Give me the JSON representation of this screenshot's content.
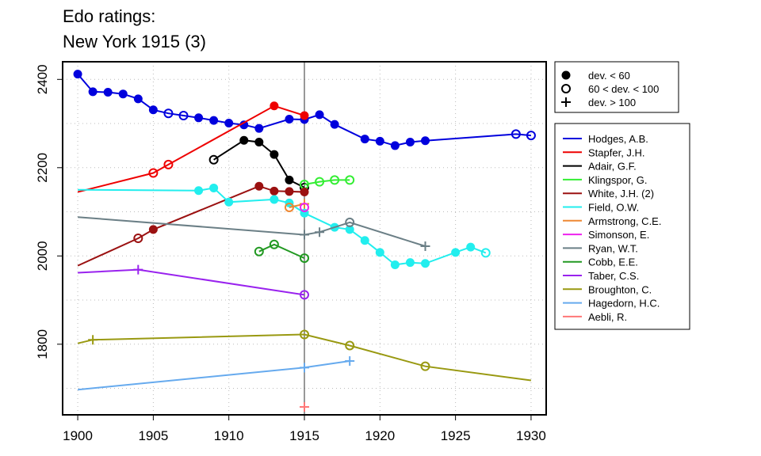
{
  "chart_data": {
    "type": "line",
    "title_line1": "Edo ratings:",
    "title_line2": "New York 1915 (3)",
    "xlabel": "",
    "ylabel": "",
    "xlim": [
      1899,
      1931
    ],
    "ylim": [
      1640,
      2440
    ],
    "grid": true,
    "x_ticks": [
      1900,
      1905,
      1910,
      1915,
      1920,
      1925,
      1930
    ],
    "y_ticks": [
      1800,
      2000,
      2200,
      2400
    ],
    "event_year": 1915,
    "symbol_legend": [
      {
        "symbol": "filled",
        "label": "dev. < 60"
      },
      {
        "symbol": "open",
        "label": "60 < dev. < 100"
      },
      {
        "symbol": "plus",
        "label": "dev. > 100"
      }
    ],
    "series": [
      {
        "name": "Hodges, A.B.",
        "color": "#0000dd",
        "points": [
          [
            1900,
            2412,
            "filled"
          ],
          [
            1901,
            2372,
            "filled"
          ],
          [
            1902,
            2371,
            "filled"
          ],
          [
            1903,
            2367,
            "filled"
          ],
          [
            1904,
            2356,
            "filled"
          ],
          [
            1905,
            2331,
            "filled"
          ],
          [
            1906,
            2323,
            "open"
          ],
          [
            1907,
            2318,
            "open"
          ],
          [
            1908,
            2313,
            "filled"
          ],
          [
            1909,
            2307,
            "filled"
          ],
          [
            1910,
            2301,
            "filled"
          ],
          [
            1911,
            2297,
            "filled"
          ],
          [
            1912,
            2289,
            "filled"
          ],
          [
            1914,
            2310,
            "filled"
          ],
          [
            1915,
            2309,
            "filled"
          ],
          [
            1916,
            2320,
            "filled"
          ],
          [
            1917,
            2298,
            "filled"
          ],
          [
            1919,
            2265,
            "filled"
          ],
          [
            1920,
            2260,
            "filled"
          ],
          [
            1921,
            2250,
            "filled"
          ],
          [
            1922,
            2258,
            "filled"
          ],
          [
            1923,
            2261,
            "filled"
          ],
          [
            1929,
            2276,
            "open"
          ],
          [
            1930,
            2273,
            "open"
          ]
        ]
      },
      {
        "name": "Stapfer, J.H.",
        "color": "#ee0000",
        "points": [
          [
            1900,
            2145,
            "none"
          ],
          [
            1905,
            2188,
            "open"
          ],
          [
            1906,
            2207,
            "open"
          ],
          [
            1913,
            2340,
            "filled"
          ],
          [
            1915,
            2318,
            "filled"
          ]
        ]
      },
      {
        "name": "Adair, G.F.",
        "color": "#000000",
        "points": [
          [
            1909,
            2218,
            "open"
          ],
          [
            1911,
            2262,
            "filled"
          ],
          [
            1912,
            2258,
            "filled"
          ],
          [
            1913,
            2230,
            "filled"
          ],
          [
            1914,
            2172,
            "filled"
          ],
          [
            1915,
            2155,
            "open"
          ]
        ]
      },
      {
        "name": "Klingspor, G.",
        "color": "#33ee33",
        "points": [
          [
            1915,
            2162,
            "open"
          ],
          [
            1916,
            2168,
            "open"
          ],
          [
            1917,
            2172,
            "open"
          ],
          [
            1918,
            2172,
            "open"
          ]
        ]
      },
      {
        "name": "White, J.H. (2)",
        "color": "#9b1111",
        "points": [
          [
            1900,
            1978,
            "none"
          ],
          [
            1904,
            2040,
            "open"
          ],
          [
            1905,
            2060,
            "filled"
          ],
          [
            1912,
            2158,
            "filled"
          ],
          [
            1913,
            2147,
            "filled"
          ],
          [
            1914,
            2146,
            "filled"
          ],
          [
            1915,
            2145,
            "filled"
          ]
        ]
      },
      {
        "name": "Field, O.W.",
        "color": "#22eeee",
        "points": [
          [
            1900,
            2150,
            "none"
          ],
          [
            1908,
            2148,
            "filled"
          ],
          [
            1909,
            2154,
            "filled"
          ],
          [
            1910,
            2122,
            "filled"
          ],
          [
            1913,
            2128,
            "filled"
          ],
          [
            1914,
            2120,
            "filled"
          ],
          [
            1915,
            2097,
            "filled"
          ],
          [
            1917,
            2065,
            "filled"
          ],
          [
            1918,
            2060,
            "filled"
          ],
          [
            1919,
            2035,
            "filled"
          ],
          [
            1920,
            2008,
            "filled"
          ],
          [
            1921,
            1980,
            "filled"
          ],
          [
            1922,
            1985,
            "filled"
          ],
          [
            1923,
            1983,
            "filled"
          ],
          [
            1925,
            2008,
            "filled"
          ],
          [
            1926,
            2020,
            "filled"
          ],
          [
            1927,
            2007,
            "open"
          ]
        ]
      },
      {
        "name": "Armstrong, C.E.",
        "color": "#ee8833",
        "points": [
          [
            1914,
            2110,
            "open"
          ],
          [
            1915,
            2118,
            "plus"
          ]
        ]
      },
      {
        "name": "Simonson, E.",
        "color": "#ee22ee",
        "points": [
          [
            1915,
            2110,
            "open"
          ]
        ]
      },
      {
        "name": "Ryan, W.T.",
        "color": "#6b7f86",
        "points": [
          [
            1900,
            2088,
            "none"
          ],
          [
            1915,
            2048,
            "plus"
          ],
          [
            1916,
            2054,
            "plus"
          ],
          [
            1918,
            2076,
            "open"
          ],
          [
            1923,
            2022,
            "plus"
          ]
        ]
      },
      {
        "name": "Cobb, E.E.",
        "color": "#229922",
        "points": [
          [
            1912,
            2010,
            "open"
          ],
          [
            1913,
            2026,
            "open"
          ],
          [
            1915,
            1995,
            "open"
          ]
        ]
      },
      {
        "name": "Taber, C.S.",
        "color": "#9922ee",
        "points": [
          [
            1900,
            1962,
            "none"
          ],
          [
            1904,
            1969,
            "plus"
          ],
          [
            1915,
            1912,
            "open"
          ]
        ]
      },
      {
        "name": "Broughton, C.",
        "color": "#999911",
        "points": [
          [
            1900,
            1802,
            "none"
          ],
          [
            1901,
            1810,
            "plus"
          ],
          [
            1915,
            1822,
            "open"
          ],
          [
            1918,
            1797,
            "open"
          ],
          [
            1923,
            1750,
            "open"
          ],
          [
            1930,
            1718,
            "none"
          ]
        ]
      },
      {
        "name": "Hagedorn, H.C.",
        "color": "#66aaee",
        "points": [
          [
            1900,
            1697,
            "none"
          ],
          [
            1915,
            1747,
            "plus"
          ],
          [
            1918,
            1762,
            "plus"
          ]
        ]
      },
      {
        "name": "Aebli, R.",
        "color": "#ff7777",
        "points": [
          [
            1915,
            1658,
            "plus"
          ]
        ]
      }
    ]
  }
}
